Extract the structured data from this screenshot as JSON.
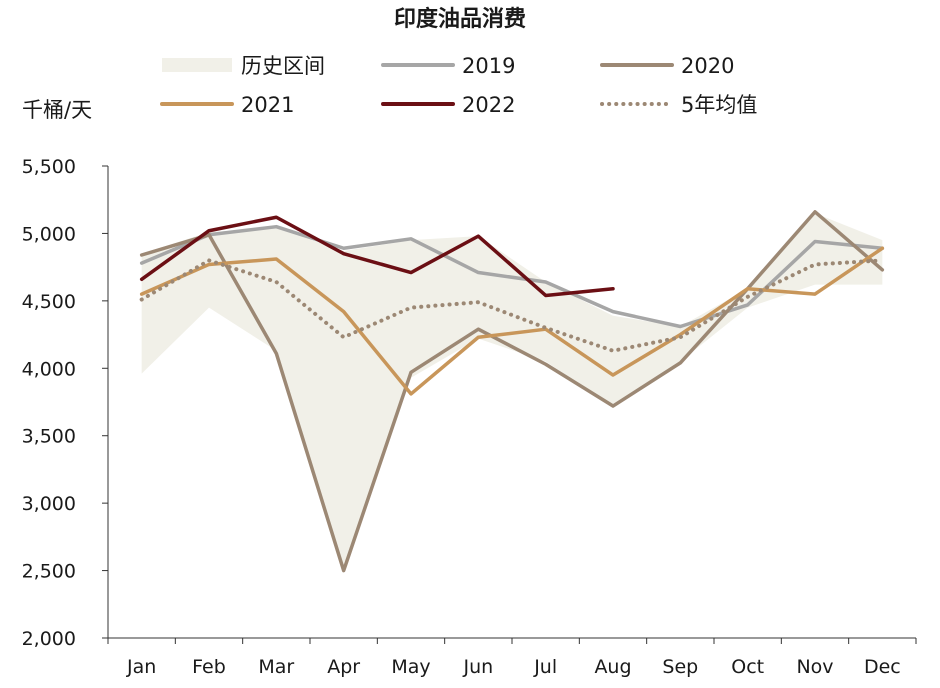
{
  "chart_data": {
    "type": "line",
    "title": "印度油品消费",
    "ylabel": "千桶/天",
    "ylim": [
      2000,
      5500
    ],
    "yticks": [
      2000,
      2500,
      3000,
      3500,
      4000,
      4500,
      5000,
      5500
    ],
    "ytick_labels": [
      "2,000",
      "2,500",
      "3,000",
      "3,500",
      "4,000",
      "4,500",
      "5,000",
      "5,500"
    ],
    "categories": [
      "Jan",
      "Feb",
      "Mar",
      "Apr",
      "May",
      "Jun",
      "Jul",
      "Aug",
      "Sep",
      "Oct",
      "Nov",
      "Dec"
    ],
    "range": {
      "name": "历史区间",
      "color": "#f1f0e8",
      "low": [
        3960,
        4450,
        4130,
        2500,
        3930,
        4220,
        4050,
        3720,
        4050,
        4450,
        4620,
        4620
      ],
      "high": [
        4850,
        5010,
        5040,
        4870,
        4950,
        4980,
        4640,
        4390,
        4310,
        4590,
        5150,
        4950
      ]
    },
    "series": [
      {
        "name": "2019",
        "color": "#a6a6a6",
        "style": "solid",
        "values": [
          4780,
          4990,
          5050,
          4890,
          4960,
          4710,
          4640,
          4420,
          4310,
          4470,
          4940,
          4890
        ]
      },
      {
        "name": "2020",
        "color": "#9c8874",
        "style": "solid",
        "values": [
          4840,
          4990,
          4110,
          2500,
          3970,
          4290,
          4030,
          3720,
          4040,
          4590,
          5160,
          4730
        ]
      },
      {
        "name": "2021",
        "color": "#c8965a",
        "style": "solid",
        "values": [
          4550,
          4770,
          4810,
          4420,
          3810,
          4230,
          4290,
          3950,
          4250,
          4590,
          4550,
          4890
        ]
      },
      {
        "name": "2022",
        "color": "#6b0f14",
        "style": "solid",
        "values": [
          4660,
          5020,
          5120,
          4850,
          4710,
          4980,
          4540,
          4590,
          null,
          null,
          null,
          null
        ]
      },
      {
        "name": "5年均值",
        "color": "#9c8874",
        "style": "dotted",
        "values": [
          4510,
          4800,
          4640,
          4230,
          4450,
          4490,
          4300,
          4130,
          4230,
          4530,
          4770,
          4800
        ]
      }
    ],
    "legend_position": "top",
    "grid": false
  }
}
